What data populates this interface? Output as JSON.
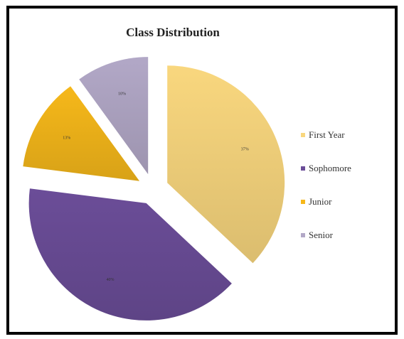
{
  "chart_data": {
    "type": "pie",
    "title": "Class Distribution",
    "categories": [
      "First Year",
      "Sophomore",
      "Junior",
      "Senior"
    ],
    "values": [
      37,
      40,
      13,
      10
    ],
    "value_labels": [
      "37%",
      "40%",
      "13%",
      "10%"
    ],
    "colors": [
      "#f9d77e",
      "#6b4d98",
      "#f6b81a",
      "#b2a8c7"
    ],
    "legend_position": "right",
    "exploded": true
  }
}
